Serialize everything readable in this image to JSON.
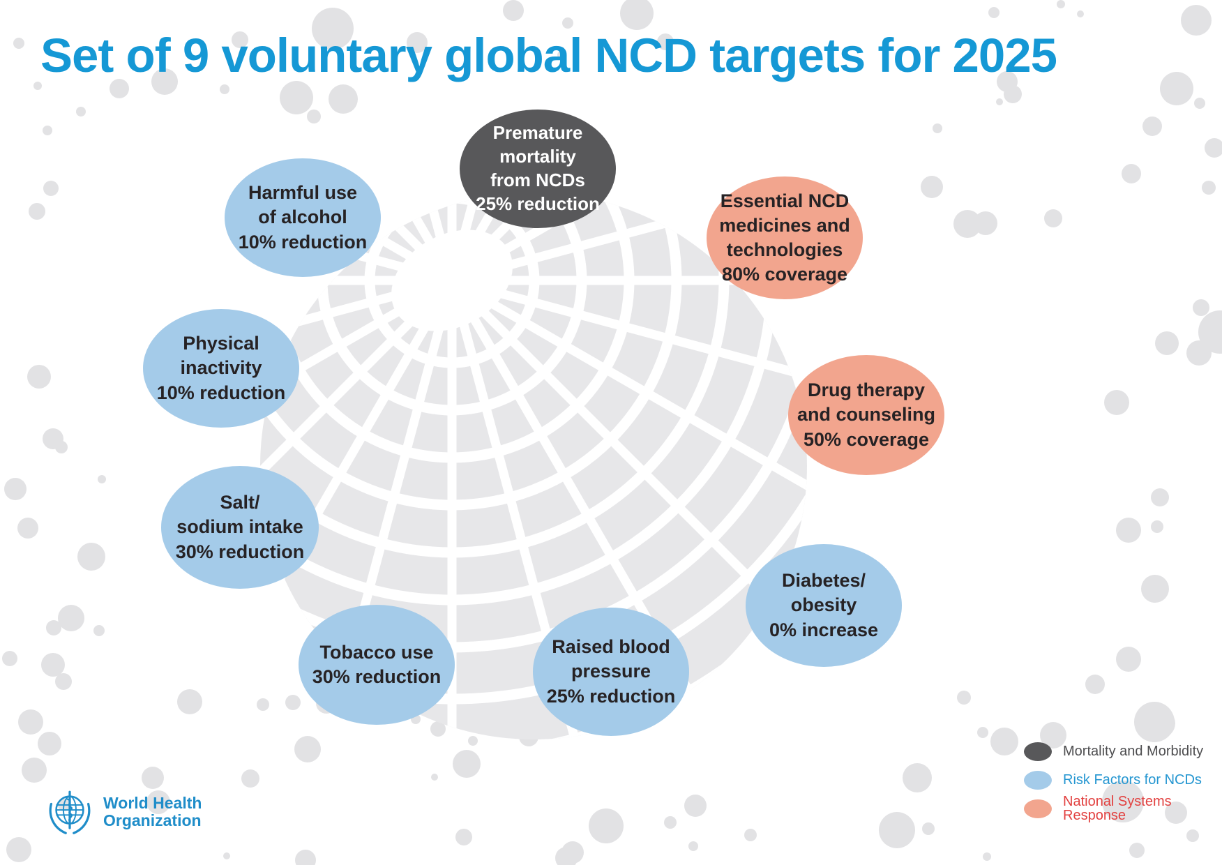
{
  "title": "Set of 9 voluntary global NCD targets for 2025",
  "targets": [
    {
      "id": "premature-mortality",
      "label": "Premature\nmortality\nfrom NCDs",
      "value": "25% reduction",
      "category": "mortality"
    },
    {
      "id": "harmful-alcohol",
      "label": "Harmful use\nof alcohol",
      "value": "10% reduction",
      "category": "risk"
    },
    {
      "id": "essential-medicines",
      "label": "Essential NCD\nmedicines and\ntechnologies",
      "value": "80% coverage",
      "category": "systems"
    },
    {
      "id": "physical-inactivity",
      "label": "Physical\ninactivity",
      "value": "10% reduction",
      "category": "risk"
    },
    {
      "id": "drug-therapy",
      "label": "Drug therapy\nand counseling",
      "value": "50% coverage",
      "category": "systems"
    },
    {
      "id": "salt-sodium-intake",
      "label": "Salt/\nsodium intake",
      "value": "30% reduction",
      "category": "risk"
    },
    {
      "id": "diabetes-obesity",
      "label": "Diabetes/\nobesity",
      "value": "0% increase",
      "category": "risk"
    },
    {
      "id": "tobacco-use",
      "label": "Tobacco use",
      "value": "30% reduction",
      "category": "risk"
    },
    {
      "id": "raised-blood-pressure",
      "label": "Raised blood\npressure",
      "value": "25% reduction",
      "category": "risk"
    }
  ],
  "legend": [
    {
      "label": "Mortality and Morbidity",
      "category": "mortality"
    },
    {
      "label": "Risk Factors for NCDs",
      "category": "risk"
    },
    {
      "label": "National Systems Response",
      "category": "systems"
    }
  ],
  "logo": {
    "line1": "World Health",
    "line2": "Organization"
  },
  "palette": {
    "title_blue": "#1598d5",
    "mortality_fill": "#58585a",
    "risk_fill": "#a4cbe9",
    "systems_fill": "#f2a58e",
    "bubble_text_dark": "#262224",
    "bubble_text_light": "#ffffff",
    "legend_mortality_text": "#4d4d4f",
    "legend_risk_text": "#2496d1",
    "legend_systems_text": "#e2403f",
    "globe_gray": "#e7e7e9",
    "dot_gray": "#e2e2e4",
    "who_blue": "#1f8dc9"
  }
}
